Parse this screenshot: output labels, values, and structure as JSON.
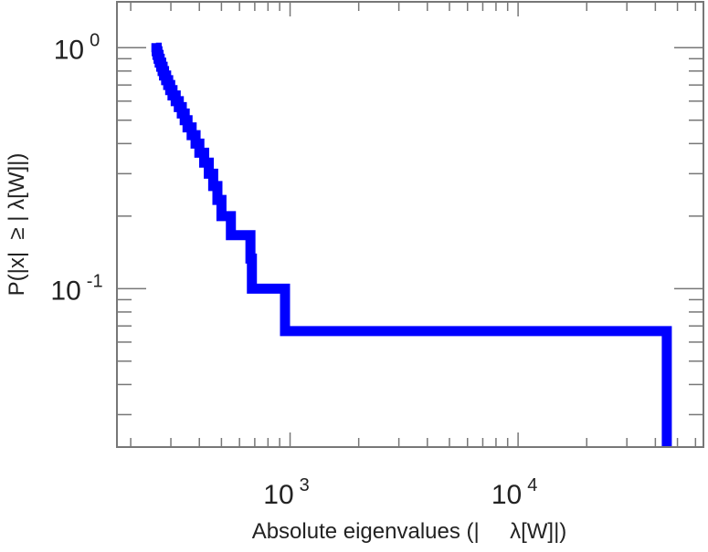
{
  "chart_data": {
    "type": "line",
    "subtype": "ccdf-step",
    "title": "",
    "xlabel": "Absolute eigenvalues (|     λ[W]|)",
    "ylabel": "P(|x|  ≥ | λ[W]|)",
    "xscale": "log",
    "yscale": "log",
    "xlim": [
      174,
      65000
    ],
    "ylim": [
      0.022,
      1.55
    ],
    "x_ticks": [
      {
        "value": 1000,
        "base": "10",
        "exp": "3"
      },
      {
        "value": 10000,
        "base": "10",
        "exp": "4"
      }
    ],
    "y_ticks": [
      {
        "value": 1,
        "base": "10",
        "exp": "0"
      },
      {
        "value": 0.1,
        "base": "10",
        "exp": "-1"
      }
    ],
    "grid": false,
    "color": "#0000ff",
    "series": [
      {
        "name": "eigenvalues",
        "values": [
          258,
          260,
          262,
          265,
          268,
          272,
          276,
          280,
          286,
          292,
          298,
          305,
          315,
          325,
          335,
          345,
          355,
          370,
          385,
          400,
          420,
          440,
          460,
          480,
          500,
          550,
          670,
          680,
          950,
          44900
        ]
      }
    ]
  }
}
